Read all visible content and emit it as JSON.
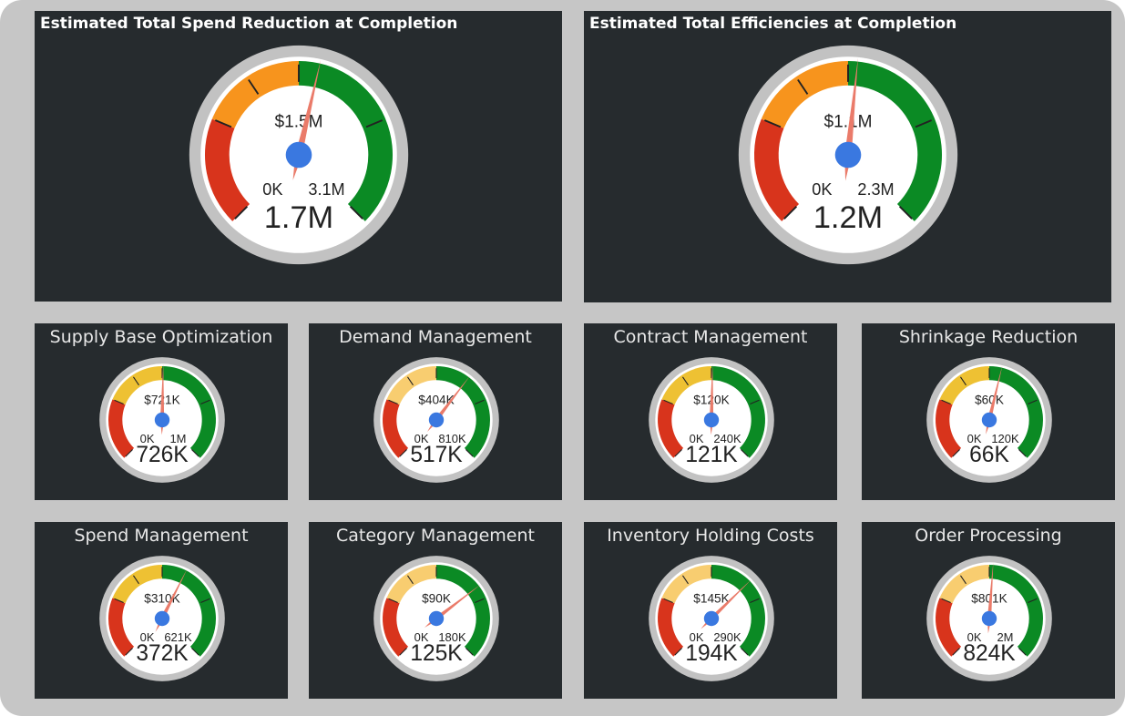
{
  "colors": {
    "red": "#d8341c",
    "orange": "#f7941d",
    "yellow": "#eec133",
    "light_yellow": "#f8cd70",
    "green": "#0b8a24",
    "needle": "#ea7b6a",
    "hub": "#3a78e0",
    "panel": "#262b2e"
  },
  "big_gauges": [
    {
      "title": "Estimated Total Spend Reduction at Completion",
      "target_label": "$1.5M",
      "min_label": "0K",
      "max_label": "3.1M",
      "value_label": "1.7M",
      "value": 1.7,
      "max": 3.1,
      "mid_color": "orange"
    },
    {
      "title": "Estimated Total Efficiencies at Completion",
      "target_label": "$1.1M",
      "min_label": "0K",
      "max_label": "2.3M",
      "value_label": "1.2M",
      "value": 1.2,
      "max": 2.3,
      "mid_color": "orange"
    }
  ],
  "small_gauges": [
    {
      "title": "Supply Base Optimization",
      "target_label": "$721K",
      "min_label": "0K",
      "max_label": "1M",
      "value_label": "726K",
      "value": 726,
      "max": 1440,
      "mid_color": "yellow"
    },
    {
      "title": "Demand Management",
      "target_label": "$404K",
      "min_label": "0K",
      "max_label": "810K",
      "value_label": "517K",
      "value": 517,
      "max": 810,
      "mid_color": "light_yellow"
    },
    {
      "title": "Contract Management",
      "target_label": "$120K",
      "min_label": "0K",
      "max_label": "240K",
      "value_label": "121K",
      "value": 121,
      "max": 240,
      "mid_color": "yellow"
    },
    {
      "title": "Shrinkage Reduction",
      "target_label": "$60K",
      "min_label": "0K",
      "max_label": "120K",
      "value_label": "66K",
      "value": 66,
      "max": 120,
      "mid_color": "yellow"
    },
    {
      "title": "Spend Management",
      "target_label": "$310K",
      "min_label": "0K",
      "max_label": "621K",
      "value_label": "372K",
      "value": 372,
      "max": 621,
      "mid_color": "yellow"
    },
    {
      "title": "Category Management",
      "target_label": "$90K",
      "min_label": "0K",
      "max_label": "180K",
      "value_label": "125K",
      "value": 125,
      "max": 180,
      "mid_color": "light_yellow"
    },
    {
      "title": "Inventory Holding Costs",
      "target_label": "$145K",
      "min_label": "0K",
      "max_label": "290K",
      "value_label": "194K",
      "value": 194,
      "max": 290,
      "mid_color": "light_yellow"
    },
    {
      "title": "Order Processing",
      "target_label": "$801K",
      "min_label": "0K",
      "max_label": "2M",
      "value_label": "824K",
      "value": 824,
      "max": 1600,
      "mid_color": "light_yellow"
    }
  ]
}
